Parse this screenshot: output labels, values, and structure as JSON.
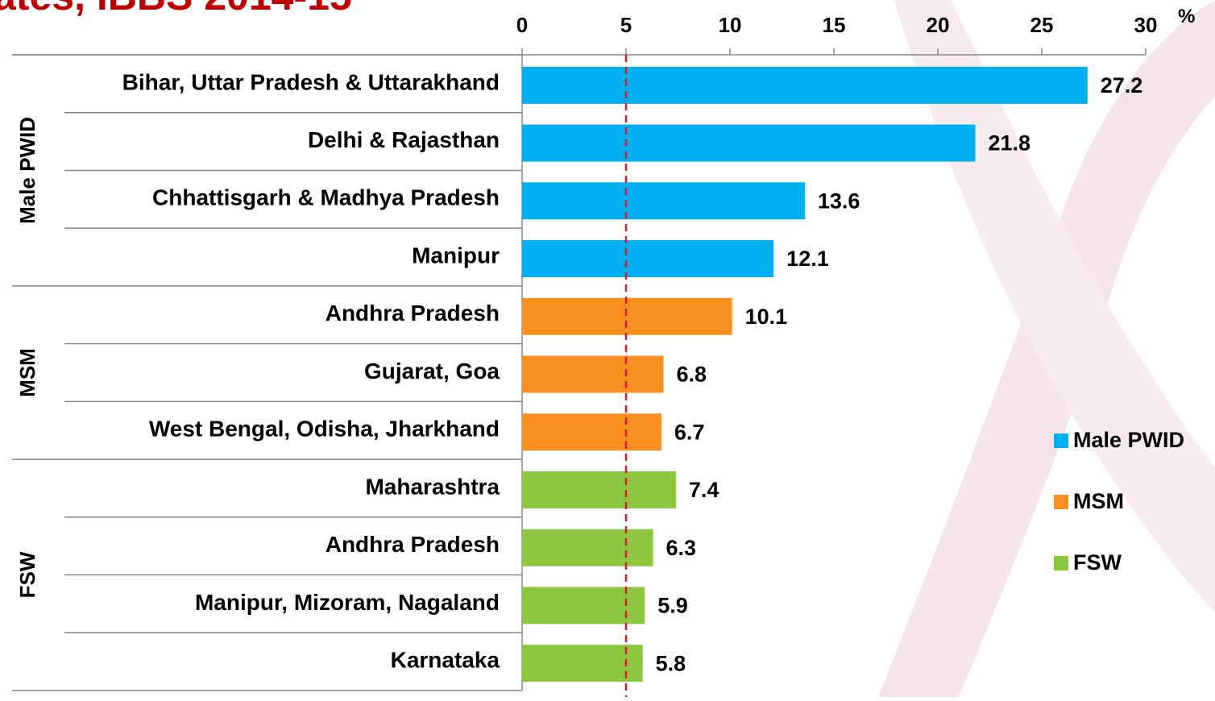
{
  "chart_data": {
    "type": "bar",
    "orientation": "horizontal",
    "title": "ates, IBBS 2014-15",
    "unit": "%",
    "categories": [
      "Bihar, Uttar Pradesh & Uttarakhand",
      "Delhi & Rajasthan",
      "Chhattisgarh & Madhya Pradesh",
      "Manipur",
      "Andhra Pradesh",
      "Gujarat, Goa",
      "West Bengal, Odisha, Jharkhand",
      "Maharashtra",
      "Andhra Pradesh",
      "Manipur, Mizoram, Nagaland",
      "Karnataka"
    ],
    "series": [
      {
        "name": "Male PWID",
        "color": "#00b0f0",
        "values": [
          27.2,
          21.8,
          13.6,
          12.1,
          null,
          null,
          null,
          null,
          null,
          null,
          null
        ]
      },
      {
        "name": "MSM",
        "color": "#f7901e",
        "values": [
          null,
          null,
          null,
          null,
          10.1,
          6.8,
          6.7,
          null,
          null,
          null,
          null
        ]
      },
      {
        "name": "FSW",
        "color": "#8dc63f",
        "values": [
          null,
          null,
          null,
          null,
          null,
          null,
          null,
          7.4,
          6.3,
          5.9,
          5.8
        ]
      }
    ],
    "xlim": [
      0,
      30
    ],
    "xticks": [
      0,
      5,
      10,
      15,
      20,
      25,
      30
    ],
    "reference_line": 5,
    "reference_color": "#d7192d",
    "title_color": "#c00000",
    "legend": "right"
  }
}
